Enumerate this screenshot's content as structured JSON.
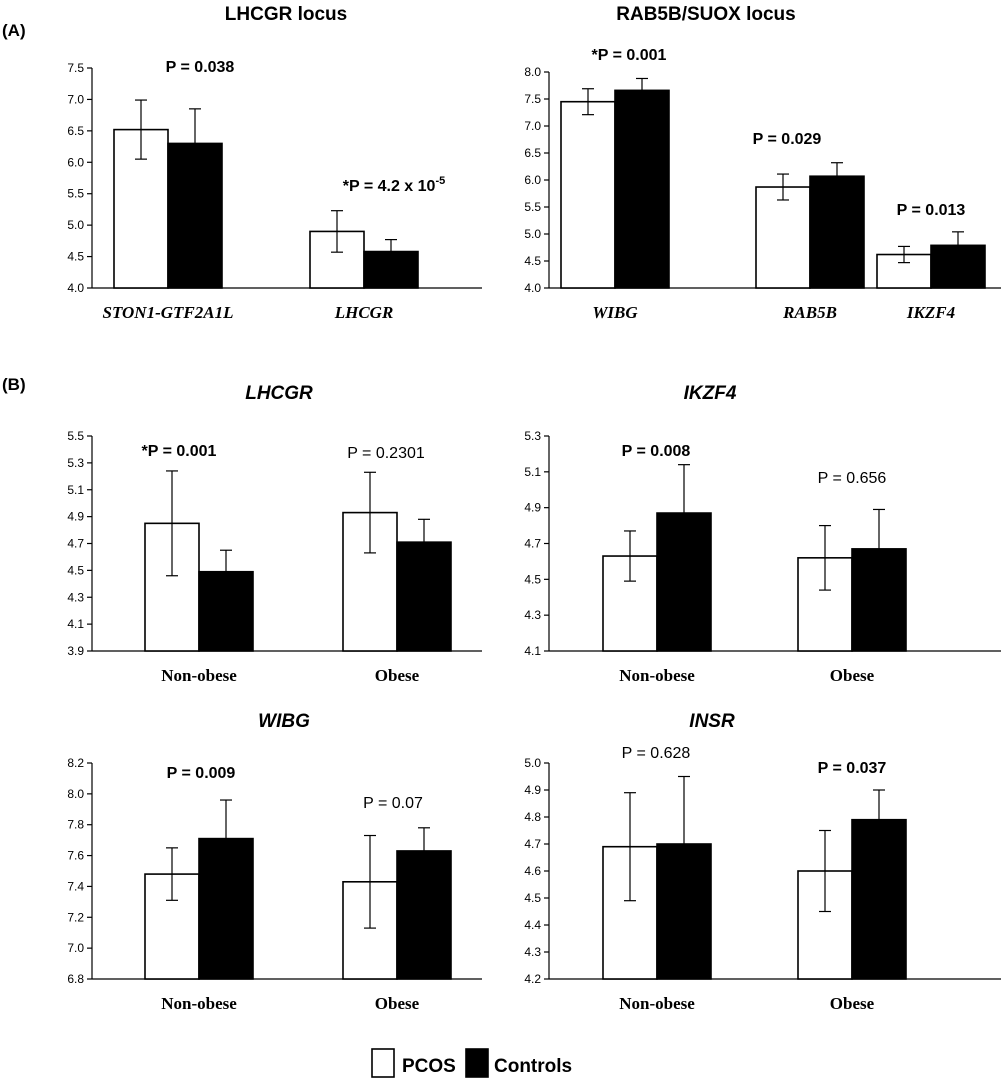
{
  "colors": {
    "pcos": "#ffffff",
    "controls": "#000000",
    "stroke": "#000000",
    "text": "#000000"
  },
  "panel_labels": [
    "(A)",
    "(B)"
  ],
  "legend": {
    "entries": [
      {
        "label": "PCOS",
        "fill": "#ffffff"
      },
      {
        "label": "Controls",
        "fill": "#000000"
      }
    ]
  },
  "chart_data": [
    {
      "type": "bar",
      "title": "LHCGR locus",
      "ylim": [
        4.0,
        7.5
      ],
      "yticks": [
        "4.0",
        "4.5",
        "5.0",
        "5.5",
        "6.0",
        "6.5",
        "7.0",
        "7.5"
      ],
      "categories": [
        "STON1-GTF2A1L",
        "LHCGR"
      ],
      "series": [
        {
          "name": "PCOS",
          "values": [
            6.52,
            4.9
          ],
          "errors": [
            0.47,
            0.33
          ]
        },
        {
          "name": "Controls",
          "values": [
            6.3,
            4.58
          ],
          "errors": [
            0.55,
            0.19
          ]
        }
      ],
      "annotations": [
        {
          "parts": [
            "P = 0.038"
          ],
          "bold": true
        },
        {
          "parts": [
            "*P =  4.2 x 10",
            "-5"
          ],
          "bold": true
        }
      ]
    },
    {
      "type": "bar",
      "title": "RAB5B/SUOX locus",
      "ylim": [
        4.0,
        8.0
      ],
      "yticks": [
        "4.0",
        "4.5",
        "5.0",
        "5.5",
        "6.0",
        "6.5",
        "7.0",
        "7.5",
        "8.0"
      ],
      "categories": [
        "WIBG",
        "RAB5B",
        "IKZF4"
      ],
      "series": [
        {
          "name": "PCOS",
          "values": [
            7.45,
            5.87,
            4.62
          ],
          "errors": [
            0.24,
            0.24,
            0.15
          ]
        },
        {
          "name": "Controls",
          "values": [
            7.66,
            6.07,
            4.79
          ],
          "errors": [
            0.22,
            0.25,
            0.25
          ]
        }
      ],
      "annotations": [
        {
          "parts": [
            "*P = 0.001"
          ],
          "bold": true
        },
        {
          "parts": [
            "P = 0.029"
          ],
          "bold": true
        },
        {
          "parts": [
            "P = 0.013"
          ],
          "bold": true
        }
      ]
    },
    {
      "type": "bar",
      "title": "LHCGR",
      "ylim": [
        3.9,
        5.5
      ],
      "yticks": [
        "3.9",
        "4.1",
        "4.3",
        "4.5",
        "4.7",
        "4.9",
        "5.1",
        "5.3",
        "5.5"
      ],
      "categories": [
        "Non-obese",
        "Obese"
      ],
      "series": [
        {
          "name": "PCOS",
          "values": [
            4.85,
            4.93
          ],
          "errors": [
            0.39,
            0.3
          ]
        },
        {
          "name": "Controls",
          "values": [
            4.49,
            4.71
          ],
          "errors": [
            0.16,
            0.17
          ]
        }
      ],
      "annotations": [
        {
          "parts": [
            "*P = 0.001"
          ],
          "bold": true
        },
        {
          "parts": [
            "P = 0.2301"
          ],
          "bold": false
        }
      ]
    },
    {
      "type": "bar",
      "title": "IKZF4",
      "ylim": [
        4.1,
        5.3
      ],
      "yticks": [
        "4.1",
        "4.3",
        "4.5",
        "4.7",
        "4.9",
        "5.1",
        "5.3"
      ],
      "categories": [
        "Non-obese",
        "Obese"
      ],
      "series": [
        {
          "name": "PCOS",
          "values": [
            4.63,
            4.62
          ],
          "errors": [
            0.14,
            0.18
          ]
        },
        {
          "name": "Controls",
          "values": [
            4.87,
            4.67
          ],
          "errors": [
            0.27,
            0.22
          ]
        }
      ],
      "annotations": [
        {
          "parts": [
            "P = 0.008"
          ],
          "bold": true
        },
        {
          "parts": [
            "P = 0.656"
          ],
          "bold": false
        }
      ]
    },
    {
      "type": "bar",
      "title": "WIBG",
      "ylim": [
        6.8,
        8.2
      ],
      "yticks": [
        "6.8",
        "7.0",
        "7.2",
        "7.4",
        "7.6",
        "7.8",
        "8.0",
        "8.2"
      ],
      "categories": [
        "Non-obese",
        "Obese"
      ],
      "series": [
        {
          "name": "PCOS",
          "values": [
            7.48,
            7.43
          ],
          "errors": [
            0.17,
            0.3
          ]
        },
        {
          "name": "Controls",
          "values": [
            7.71,
            7.63
          ],
          "errors": [
            0.25,
            0.15
          ]
        }
      ],
      "annotations": [
        {
          "parts": [
            "P = 0.009"
          ],
          "bold": true
        },
        {
          "parts": [
            "P = 0.07"
          ],
          "bold": false
        }
      ]
    },
    {
      "type": "bar",
      "title": "INSR",
      "ylim": [
        4.2,
        5.0
      ],
      "yticks": [
        "4.2",
        "4.3",
        "4.4",
        "4.5",
        "4.6",
        "4.7",
        "4.8",
        "4.9",
        "5.0"
      ],
      "categories": [
        "Non-obese",
        "Obese"
      ],
      "series": [
        {
          "name": "PCOS",
          "values": [
            4.69,
            4.6
          ],
          "errors": [
            0.2,
            0.15
          ]
        },
        {
          "name": "Controls",
          "values": [
            4.7,
            4.79
          ],
          "errors": [
            0.25,
            0.11
          ]
        }
      ],
      "annotations": [
        {
          "parts": [
            "P = 0.628"
          ],
          "bold": false
        },
        {
          "parts": [
            "P = 0.037"
          ],
          "bold": true
        }
      ]
    }
  ]
}
